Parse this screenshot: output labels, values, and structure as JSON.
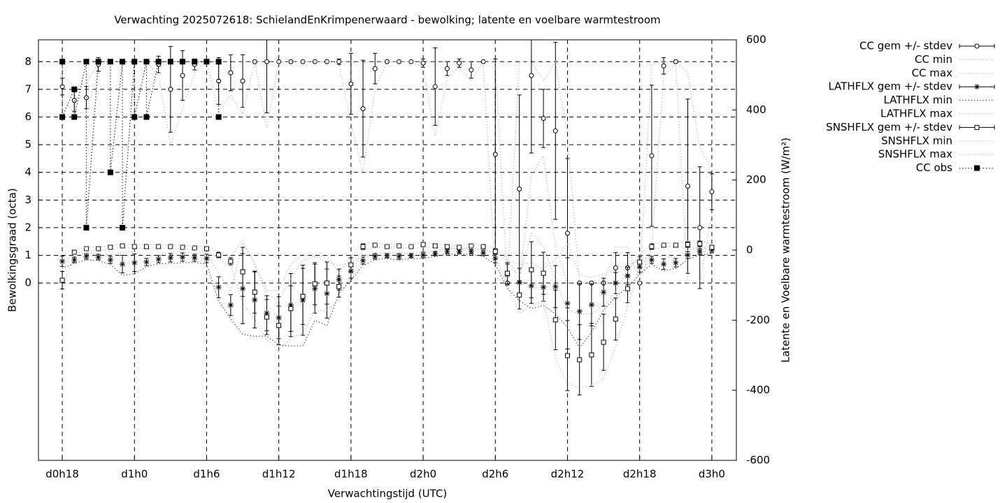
{
  "chart_data": {
    "type": "errorbar",
    "title": "Verwachting 2025072618: SchielandEnKrimpenerwaard - bewolking; latente en voelbare warmtestroom",
    "x_label": "Verwachtingstijd (UTC)",
    "y_label": "Bewolkingsgraad (octa)",
    "y2_label": "Latente en Voelbare warmtestroom (W/m²)",
    "xlim": [
      16.02,
      74.04
    ],
    "ylim": [
      -6.41,
      8.79
    ],
    "y2lim": [
      -600,
      600
    ],
    "xticks": [
      {
        "value": 18,
        "label": "d0h18"
      },
      {
        "value": 24,
        "label": "d1h0"
      },
      {
        "value": 30,
        "label": "d1h6"
      },
      {
        "value": 36,
        "label": "d1h12"
      },
      {
        "value": 42,
        "label": "d1h18"
      },
      {
        "value": 48,
        "label": "d2h0"
      },
      {
        "value": 54,
        "label": "d2h6"
      },
      {
        "value": 60,
        "label": "d2h12"
      },
      {
        "value": 66,
        "label": "d2h18"
      },
      {
        "value": 72,
        "label": "d3h0"
      }
    ],
    "yticks": [
      0,
      1,
      2,
      3,
      4,
      5,
      6,
      7,
      8
    ],
    "y2ticks": [
      -600,
      -400,
      -200,
      0,
      200,
      400,
      600
    ],
    "grid": true,
    "legend": "outside-right",
    "x": [
      18,
      19,
      20,
      21,
      22,
      23,
      24,
      25,
      26,
      27,
      28,
      29,
      30,
      31,
      32,
      33,
      34,
      35,
      36,
      37,
      38,
      39,
      40,
      41,
      42,
      43,
      44,
      45,
      46,
      47,
      48,
      49,
      50,
      51,
      52,
      53,
      54,
      55,
      56,
      57,
      58,
      59,
      60,
      61,
      62,
      63,
      64,
      65,
      66,
      67,
      68,
      69,
      70,
      71,
      72
    ],
    "series": [
      {
        "name": "CC gem +/- stdev",
        "axis": "y",
        "marker": "circle",
        "color": "#000000",
        "values": [
          7.1,
          6.6,
          6.7,
          7.9,
          8,
          8,
          8,
          8,
          7.9,
          7.0,
          7.5,
          7.9,
          8,
          7.3,
          7.6,
          7.3,
          8,
          8,
          8,
          8,
          8,
          8,
          8,
          8,
          7.2,
          6.3,
          7.75,
          8,
          8,
          8,
          7.95,
          7.1,
          7.75,
          7.95,
          7.7,
          8,
          4.65,
          0,
          3.4,
          7.5,
          5.95,
          5.5,
          1.8,
          0,
          0,
          0,
          0.55,
          0.55,
          0,
          4.6,
          7.85,
          8,
          3.5,
          2.0,
          3.3
        ],
        "errors": [
          0.3,
          0.4,
          0.4,
          0.25,
          0,
          0,
          0,
          0,
          0.3,
          1.55,
          0.9,
          0.2,
          0,
          0.85,
          0.65,
          0.95,
          0,
          1.85,
          0,
          0,
          0,
          0,
          0,
          0.1,
          1.1,
          1.75,
          0.55,
          0,
          0,
          0,
          0.15,
          1.4,
          0.25,
          0.15,
          0.3,
          0,
          3.45,
          0,
          3.4,
          2.8,
          1.05,
          3.2,
          2.7,
          0,
          0,
          0,
          0.55,
          0.55,
          0,
          2.55,
          0.3,
          0.05,
          3.15,
          2.2,
          0.65
        ]
      },
      {
        "name": "CC min",
        "axis": "y",
        "line": "dotted",
        "color": "#b0b0b0",
        "values": [
          6.7,
          6.1,
          6.2,
          7.6,
          8,
          8,
          8,
          8,
          7.5,
          5.0,
          6.3,
          7.6,
          8,
          6.2,
          6.8,
          6.1,
          8,
          5.6,
          8,
          8,
          8,
          8,
          8,
          7.9,
          5.8,
          4.0,
          7.0,
          8,
          8,
          8,
          7.8,
          5.3,
          7.4,
          7.8,
          7.3,
          8,
          0.2,
          0,
          0,
          3.9,
          4.6,
          1.3,
          0,
          0,
          0,
          0,
          0,
          0,
          0,
          1.3,
          7.5,
          7.9,
          0,
          0,
          2.5
        ]
      },
      {
        "name": "CC max",
        "axis": "y",
        "line": "dotted",
        "color": "#b0b0b0",
        "values": [
          7.5,
          7.1,
          7.2,
          8,
          8,
          8,
          8,
          8,
          8,
          8,
          8,
          8,
          8,
          8,
          8,
          8,
          8,
          8,
          8,
          8,
          8,
          8,
          8,
          8,
          8,
          8,
          8,
          8,
          8,
          8,
          8,
          8,
          8,
          8,
          8,
          8,
          8,
          0,
          8,
          8,
          7.3,
          8,
          5.3,
          0,
          0,
          0,
          1.3,
          1.3,
          0,
          7.9,
          8,
          8,
          7.6,
          4.9,
          4.1
        ]
      },
      {
        "name": "LATHFLX gem +/- stdev",
        "axis": "y2",
        "marker": "asterisk",
        "color": "#000000",
        "values": [
          -32,
          -28,
          -18,
          -20,
          -28,
          -40,
          -36,
          -34,
          -26,
          -22,
          -20,
          -22,
          -24,
          -106,
          -157,
          -110,
          -142,
          -180,
          -193,
          -157,
          -143,
          -110,
          -124,
          -84,
          -60,
          -30,
          -18,
          -16,
          -18,
          -16,
          -14,
          -10,
          -4,
          -4,
          -4,
          -8,
          -24,
          -70,
          -92,
          -102,
          -106,
          -104,
          -152,
          -175,
          -156,
          -120,
          -94,
          -74,
          -48,
          -28,
          -40,
          -36,
          -14,
          -4,
          0
        ],
        "errors": [
          15,
          8,
          8,
          8,
          10,
          25,
          25,
          10,
          10,
          12,
          12,
          10,
          12,
          30,
          30,
          100,
          80,
          50,
          60,
          90,
          100,
          70,
          70,
          30,
          20,
          10,
          8,
          6,
          8,
          6,
          8,
          6,
          6,
          6,
          6,
          8,
          12,
          30,
          40,
          50,
          40,
          60,
          130,
          80,
          60,
          40,
          30,
          25,
          15,
          10,
          15,
          12,
          10,
          8,
          8
        ]
      },
      {
        "name": "LATHFLX min",
        "axis": "y2",
        "line": "dotted",
        "color": "#303030",
        "values": [
          -52,
          -38,
          -28,
          -30,
          -41,
          -72,
          -68,
          -47,
          -39,
          -38,
          -36,
          -35,
          -40,
          -145,
          -196,
          -240,
          -246,
          -245,
          -271,
          -274,
          -273,
          -201,
          -215,
          -123,
          -86,
          -43,
          -28,
          -24,
          -28,
          -24,
          -24,
          -18,
          -12,
          -12,
          -12,
          -18,
          -40,
          -109,
          -144,
          -167,
          -158,
          -182,
          -221,
          -279,
          -234,
          -172,
          -133,
          -107,
          -68,
          -41,
          -60,
          -52,
          -27,
          -14,
          -10
        ]
      },
      {
        "name": "LATHFLX max",
        "axis": "y2",
        "line": "dotted",
        "color": "#b0b0b0",
        "values": [
          -12,
          -18,
          -8,
          -10,
          -15,
          -8,
          -4,
          -21,
          -13,
          -6,
          -4,
          -9,
          -8,
          -67,
          -118,
          20,
          -38,
          -115,
          -115,
          -40,
          -13,
          -19,
          -33,
          -45,
          -34,
          -17,
          -8,
          -8,
          -8,
          -8,
          -4,
          -2,
          4,
          4,
          4,
          2,
          -8,
          -31,
          -40,
          -37,
          -54,
          -26,
          17,
          -71,
          -78,
          -68,
          -55,
          -42,
          -28,
          -15,
          -20,
          -20,
          -1,
          6,
          10
        ]
      },
      {
        "name": "SNSHFLX gem +/- stdev",
        "axis": "y2",
        "marker": "square",
        "color": "#000000",
        "values": [
          -86,
          -6,
          4,
          4,
          8,
          12,
          10,
          10,
          10,
          10,
          8,
          6,
          4,
          -14,
          -32,
          -62,
          -120,
          -191,
          -215,
          -167,
          -132,
          -96,
          -94,
          -104,
          -42,
          10,
          14,
          10,
          12,
          10,
          16,
          12,
          10,
          8,
          12,
          10,
          -4,
          -66,
          -128,
          -56,
          -66,
          -199,
          -301,
          -313,
          -299,
          -263,
          -197,
          -110,
          -34,
          10,
          14,
          14,
          16,
          18,
          8
        ],
        "errors": [
          25,
          5,
          4,
          4,
          4,
          4,
          4,
          4,
          4,
          4,
          4,
          4,
          6,
          8,
          10,
          70,
          60,
          50,
          55,
          65,
          80,
          60,
          60,
          30,
          20,
          8,
          4,
          4,
          4,
          4,
          6,
          4,
          4,
          4,
          4,
          4,
          8,
          30,
          40,
          80,
          60,
          85,
          100,
          100,
          90,
          80,
          60,
          40,
          15,
          8,
          4,
          4,
          8,
          8,
          6
        ]
      },
      {
        "name": "SNSHFLX min",
        "axis": "y2",
        "line": "dotted",
        "color": "#b0b0b0",
        "values": [
          -118,
          -12,
          -1,
          -1,
          3,
          7,
          5,
          5,
          5,
          5,
          3,
          1,
          -4,
          -24,
          -45,
          -153,
          -198,
          -256,
          -287,
          -252,
          -236,
          -174,
          -172,
          -143,
          -68,
          0,
          9,
          5,
          7,
          5,
          8,
          7,
          5,
          3,
          7,
          5,
          -14,
          -105,
          -180,
          -160,
          -144,
          -310,
          -381,
          -393,
          -386,
          -367,
          -275,
          -162,
          -54,
          0,
          9,
          9,
          6,
          8,
          0
        ]
      },
      {
        "name": "SNSHFLX max",
        "axis": "y2",
        "line": "dotted",
        "color": "#b0b0b0",
        "values": [
          -54,
          0,
          9,
          9,
          13,
          17,
          15,
          15,
          15,
          15,
          13,
          11,
          12,
          -4,
          -19,
          29,
          -42,
          -126,
          -143,
          -83,
          -28,
          -18,
          -16,
          -65,
          -16,
          20,
          19,
          15,
          17,
          15,
          24,
          17,
          15,
          13,
          17,
          15,
          6,
          -27,
          -76,
          48,
          12,
          -88,
          -171,
          -183,
          -182,
          -159,
          -119,
          -58,
          -14,
          20,
          19,
          19,
          26,
          28,
          16
        ]
      },
      {
        "name": "CC obs",
        "axis": "y",
        "marker": "filled-square",
        "line": "dotted",
        "color": "#000000",
        "x": [
          18,
          18,
          19,
          19,
          20,
          20,
          21,
          22,
          22,
          23,
          23,
          24,
          24,
          25,
          25,
          26,
          27,
          28,
          29,
          30,
          31,
          31
        ],
        "values": [
          8,
          6,
          7,
          6,
          8,
          2,
          8,
          8,
          4,
          8,
          2,
          8,
          6,
          8,
          6,
          8,
          8,
          8,
          8,
          8,
          8,
          6
        ]
      }
    ]
  }
}
